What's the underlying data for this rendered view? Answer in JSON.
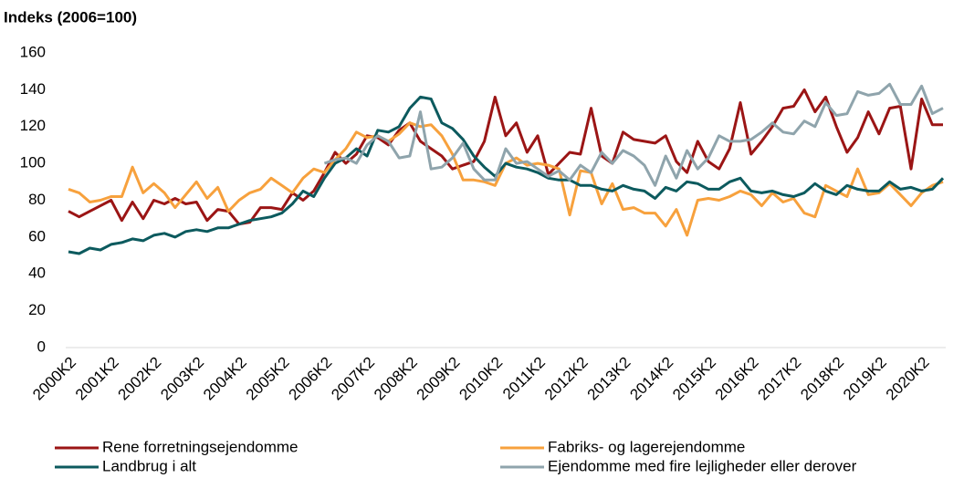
{
  "chart_data": {
    "type": "line",
    "title": "Indeks (2006=100)",
    "categories": [
      "2000K2",
      null,
      null,
      null,
      "2001K2",
      null,
      null,
      null,
      "2002K2",
      null,
      null,
      null,
      "2003K2",
      null,
      null,
      null,
      "2004K2",
      null,
      null,
      null,
      "2005K2",
      null,
      null,
      null,
      "2006K2",
      null,
      null,
      null,
      "2007K2",
      null,
      null,
      null,
      "2008K2",
      null,
      null,
      null,
      "2009K2",
      null,
      null,
      null,
      "2010K2",
      null,
      null,
      null,
      "2011K2",
      null,
      null,
      null,
      "2012K2",
      null,
      null,
      null,
      "2013K2",
      null,
      null,
      null,
      "2014K2",
      null,
      null,
      null,
      "2015K2",
      null,
      null,
      null,
      "2016K2",
      null,
      null,
      null,
      "2017K2",
      null,
      null,
      null,
      "2018K2",
      null,
      null,
      null,
      "2019K2",
      null,
      null,
      null,
      "2020K2",
      null,
      null
    ],
    "series": [
      {
        "name": "Rene forretningsejendomme",
        "color": "#9b1515",
        "values": [
          74,
          71,
          74,
          77,
          80,
          69,
          79,
          70,
          80,
          78,
          81,
          78,
          79,
          69,
          75,
          74,
          67,
          68,
          76,
          76,
          75,
          84,
          80,
          85,
          95,
          106,
          100,
          105,
          115,
          114,
          110,
          118,
          122,
          112,
          108,
          104,
          97,
          99,
          101,
          112,
          136,
          115,
          122,
          106,
          115,
          94,
          100,
          106,
          105,
          130,
          104,
          100,
          117,
          113,
          112,
          111,
          115,
          101,
          95,
          112,
          101,
          97,
          108,
          133,
          105,
          112,
          120,
          130,
          131,
          140,
          128,
          136,
          120,
          106,
          114,
          128,
          116,
          130,
          131,
          97,
          135,
          121,
          121
        ]
      },
      {
        "name": "Fabriks- og lagerejendomme",
        "color": "#f7a13d",
        "values": [
          86,
          84,
          79,
          80,
          82,
          82,
          98,
          84,
          89,
          84,
          76,
          83,
          90,
          81,
          87,
          74,
          80,
          84,
          86,
          92,
          88,
          84,
          92,
          97,
          95,
          102,
          108,
          117,
          114,
          115,
          112,
          116,
          122,
          120,
          121,
          115,
          105,
          91,
          91,
          90,
          88,
          100,
          103,
          99,
          100,
          99,
          97,
          72,
          96,
          95,
          78,
          89,
          75,
          76,
          73,
          73,
          66,
          75,
          61,
          80,
          81,
          80,
          82,
          85,
          83,
          77,
          84,
          79,
          81,
          73,
          71,
          88,
          85,
          82,
          97,
          83,
          84,
          89,
          83,
          77,
          84,
          88,
          90
        ]
      },
      {
        "name": "Landbrug i alt",
        "color": "#0c5a5e",
        "values": [
          52,
          51,
          54,
          53,
          56,
          57,
          59,
          58,
          61,
          62,
          60,
          63,
          64,
          63,
          65,
          65,
          67,
          69,
          70,
          71,
          73,
          78,
          85,
          82,
          92,
          100,
          103,
          108,
          104,
          118,
          117,
          120,
          130,
          136,
          135,
          122,
          119,
          113,
          104,
          98,
          93,
          100,
          98,
          97,
          95,
          92,
          91,
          91,
          88,
          88,
          86,
          85,
          88,
          86,
          85,
          81,
          87,
          85,
          90,
          89,
          86,
          86,
          90,
          92,
          85,
          84,
          85,
          83,
          82,
          84,
          89,
          85,
          83,
          88,
          86,
          85,
          85,
          90,
          86,
          87,
          85,
          86,
          92
        ]
      },
      {
        "name": "Ejendomme med fire lejligheder eller derover",
        "color": "#8fa4ac",
        "values": [
          null,
          null,
          null,
          null,
          null,
          null,
          null,
          null,
          null,
          null,
          null,
          null,
          null,
          null,
          null,
          null,
          null,
          null,
          null,
          null,
          null,
          null,
          null,
          null,
          100,
          102,
          103,
          100,
          110,
          115,
          112,
          103,
          104,
          128,
          97,
          98,
          103,
          111,
          97,
          91,
          91,
          108,
          100,
          101,
          97,
          93,
          96,
          91,
          99,
          95,
          106,
          100,
          107,
          104,
          99,
          88,
          104,
          92,
          107,
          97,
          103,
          115,
          112,
          112,
          113,
          117,
          122,
          117,
          116,
          123,
          120,
          133,
          126,
          127,
          139,
          137,
          138,
          143,
          132,
          132,
          142,
          127,
          130
        ]
      }
    ],
    "ylim": [
      0,
      160
    ],
    "yticks": [
      0,
      20,
      40,
      60,
      80,
      100,
      120,
      140,
      160
    ]
  }
}
